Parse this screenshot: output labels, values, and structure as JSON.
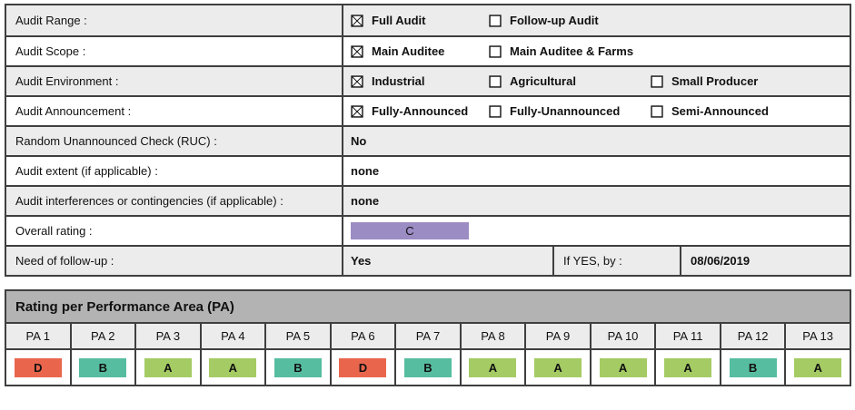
{
  "rating_colors": {
    "A": "#a5cb64",
    "B": "#57bda0",
    "C": "#9b8cc3",
    "D": "#e9664d"
  },
  "form": {
    "rows": [
      {
        "label": "Audit Range :",
        "options": [
          {
            "label": "Full Audit",
            "checked": true
          },
          {
            "label": "Follow-up Audit",
            "checked": false
          }
        ]
      },
      {
        "label": "Audit Scope :",
        "options": [
          {
            "label": "Main Auditee",
            "checked": true
          },
          {
            "label": "Main Auditee & Farms",
            "checked": false
          }
        ]
      },
      {
        "label": "Audit Environment :",
        "options": [
          {
            "label": "Industrial",
            "checked": true
          },
          {
            "label": "Agricultural",
            "checked": false
          },
          {
            "label": "Small Producer",
            "checked": false
          }
        ]
      },
      {
        "label": "Audit Announcement :",
        "options": [
          {
            "label": "Fully-Announced",
            "checked": true
          },
          {
            "label": "Fully-Unannounced",
            "checked": false
          },
          {
            "label": "Semi-Announced",
            "checked": false
          }
        ]
      },
      {
        "label": "Random Unannounced Check (RUC) :",
        "value": "No"
      },
      {
        "label": "Audit extent (if applicable) :",
        "value": "none"
      },
      {
        "label": "Audit interferences or contingencies (if applicable) :",
        "value": "none"
      },
      {
        "label": "Overall rating :",
        "rating": "C"
      },
      {
        "label": "Need of follow-up :",
        "value": "Yes",
        "if_yes_label": "If YES, by :",
        "if_yes_date": "08/06/2019"
      }
    ]
  },
  "pa_section": {
    "title": "Rating per Performance Area (PA)",
    "columns": [
      "PA 1",
      "PA 2",
      "PA 3",
      "PA 4",
      "PA 5",
      "PA 6",
      "PA 7",
      "PA 8",
      "PA 9",
      "PA 10",
      "PA 11",
      "PA 12",
      "PA 13"
    ],
    "ratings": [
      "D",
      "B",
      "A",
      "A",
      "B",
      "D",
      "B",
      "A",
      "A",
      "A",
      "A",
      "B",
      "A"
    ]
  }
}
